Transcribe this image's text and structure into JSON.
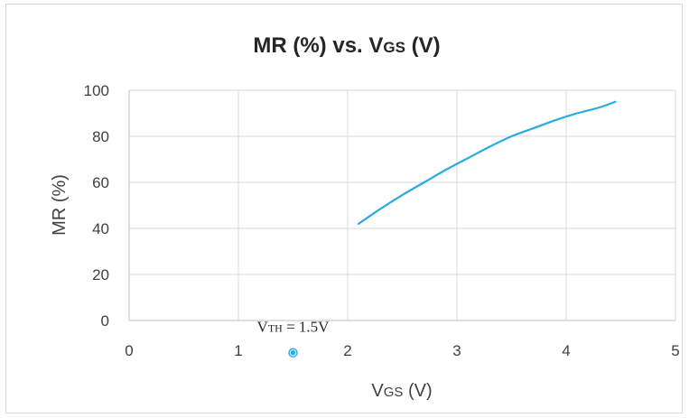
{
  "chart_data": {
    "type": "line",
    "title_main": "MR (%) vs. V",
    "title_sub": "GS",
    "title_end": " (V)",
    "xlabel_main": "V",
    "xlabel_sub": "GS",
    "xlabel_end": " (V)",
    "ylabel": "MR (%)",
    "xlim": [
      0,
      5
    ],
    "ylim": [
      0,
      100
    ],
    "x_ticks": [
      0,
      1,
      2,
      3,
      4,
      5
    ],
    "y_ticks": [
      0,
      20,
      40,
      60,
      80,
      100
    ],
    "grid": true,
    "series": [
      {
        "color": "#29abe2",
        "x": [
          2.1,
          2.3,
          2.5,
          2.7,
          2.9,
          3.1,
          3.3,
          3.5,
          3.7,
          3.9,
          4.1,
          4.3,
          4.45
        ],
        "y": [
          42,
          48.5,
          54.5,
          60,
          65.5,
          70.5,
          75.5,
          80,
          83.5,
          87,
          90,
          92.5,
          95
        ]
      }
    ],
    "annotation": {
      "text_main": "V",
      "text_sub": "TH",
      "text_end": " = 1.5V",
      "point": {
        "x": 1.5,
        "y": -14
      },
      "color": "#29abe2"
    }
  }
}
